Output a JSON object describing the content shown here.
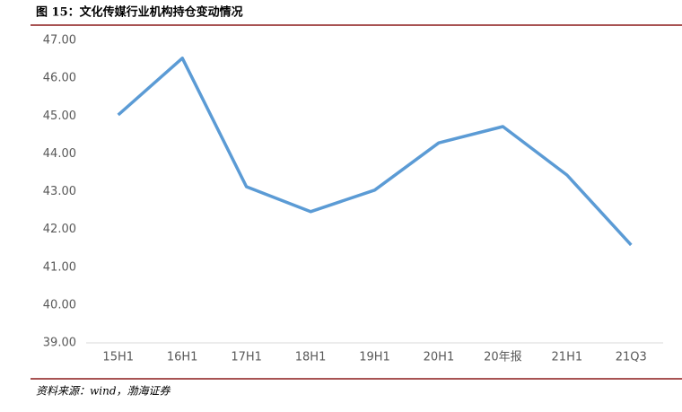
{
  "chart_data": {
    "type": "line",
    "title": "图 15：文化传媒行业机构持仓变动情况",
    "source": "资料来源：wind，渤海证券",
    "categories": [
      "15H1",
      "16H1",
      "17H1",
      "18H1",
      "19H1",
      "20H1",
      "20年报",
      "21H1",
      "21Q3"
    ],
    "values": [
      45.03,
      46.53,
      43.13,
      42.47,
      43.04,
      44.29,
      44.72,
      43.44,
      41.59
    ],
    "color": "#5b9bd5",
    "ylim": [
      39,
      47
    ],
    "yticks": [
      {
        "value": 39,
        "label": "39.00"
      },
      {
        "value": 40,
        "label": "40.00"
      },
      {
        "value": 41,
        "label": "41.00"
      },
      {
        "value": 42,
        "label": "42.00"
      },
      {
        "value": 43,
        "label": "43.00"
      },
      {
        "value": 44,
        "label": "44.00"
      },
      {
        "value": 45,
        "label": "45.00"
      },
      {
        "value": 46,
        "label": "46.00"
      },
      {
        "value": 47,
        "label": "47.00"
      }
    ],
    "grid": false
  }
}
